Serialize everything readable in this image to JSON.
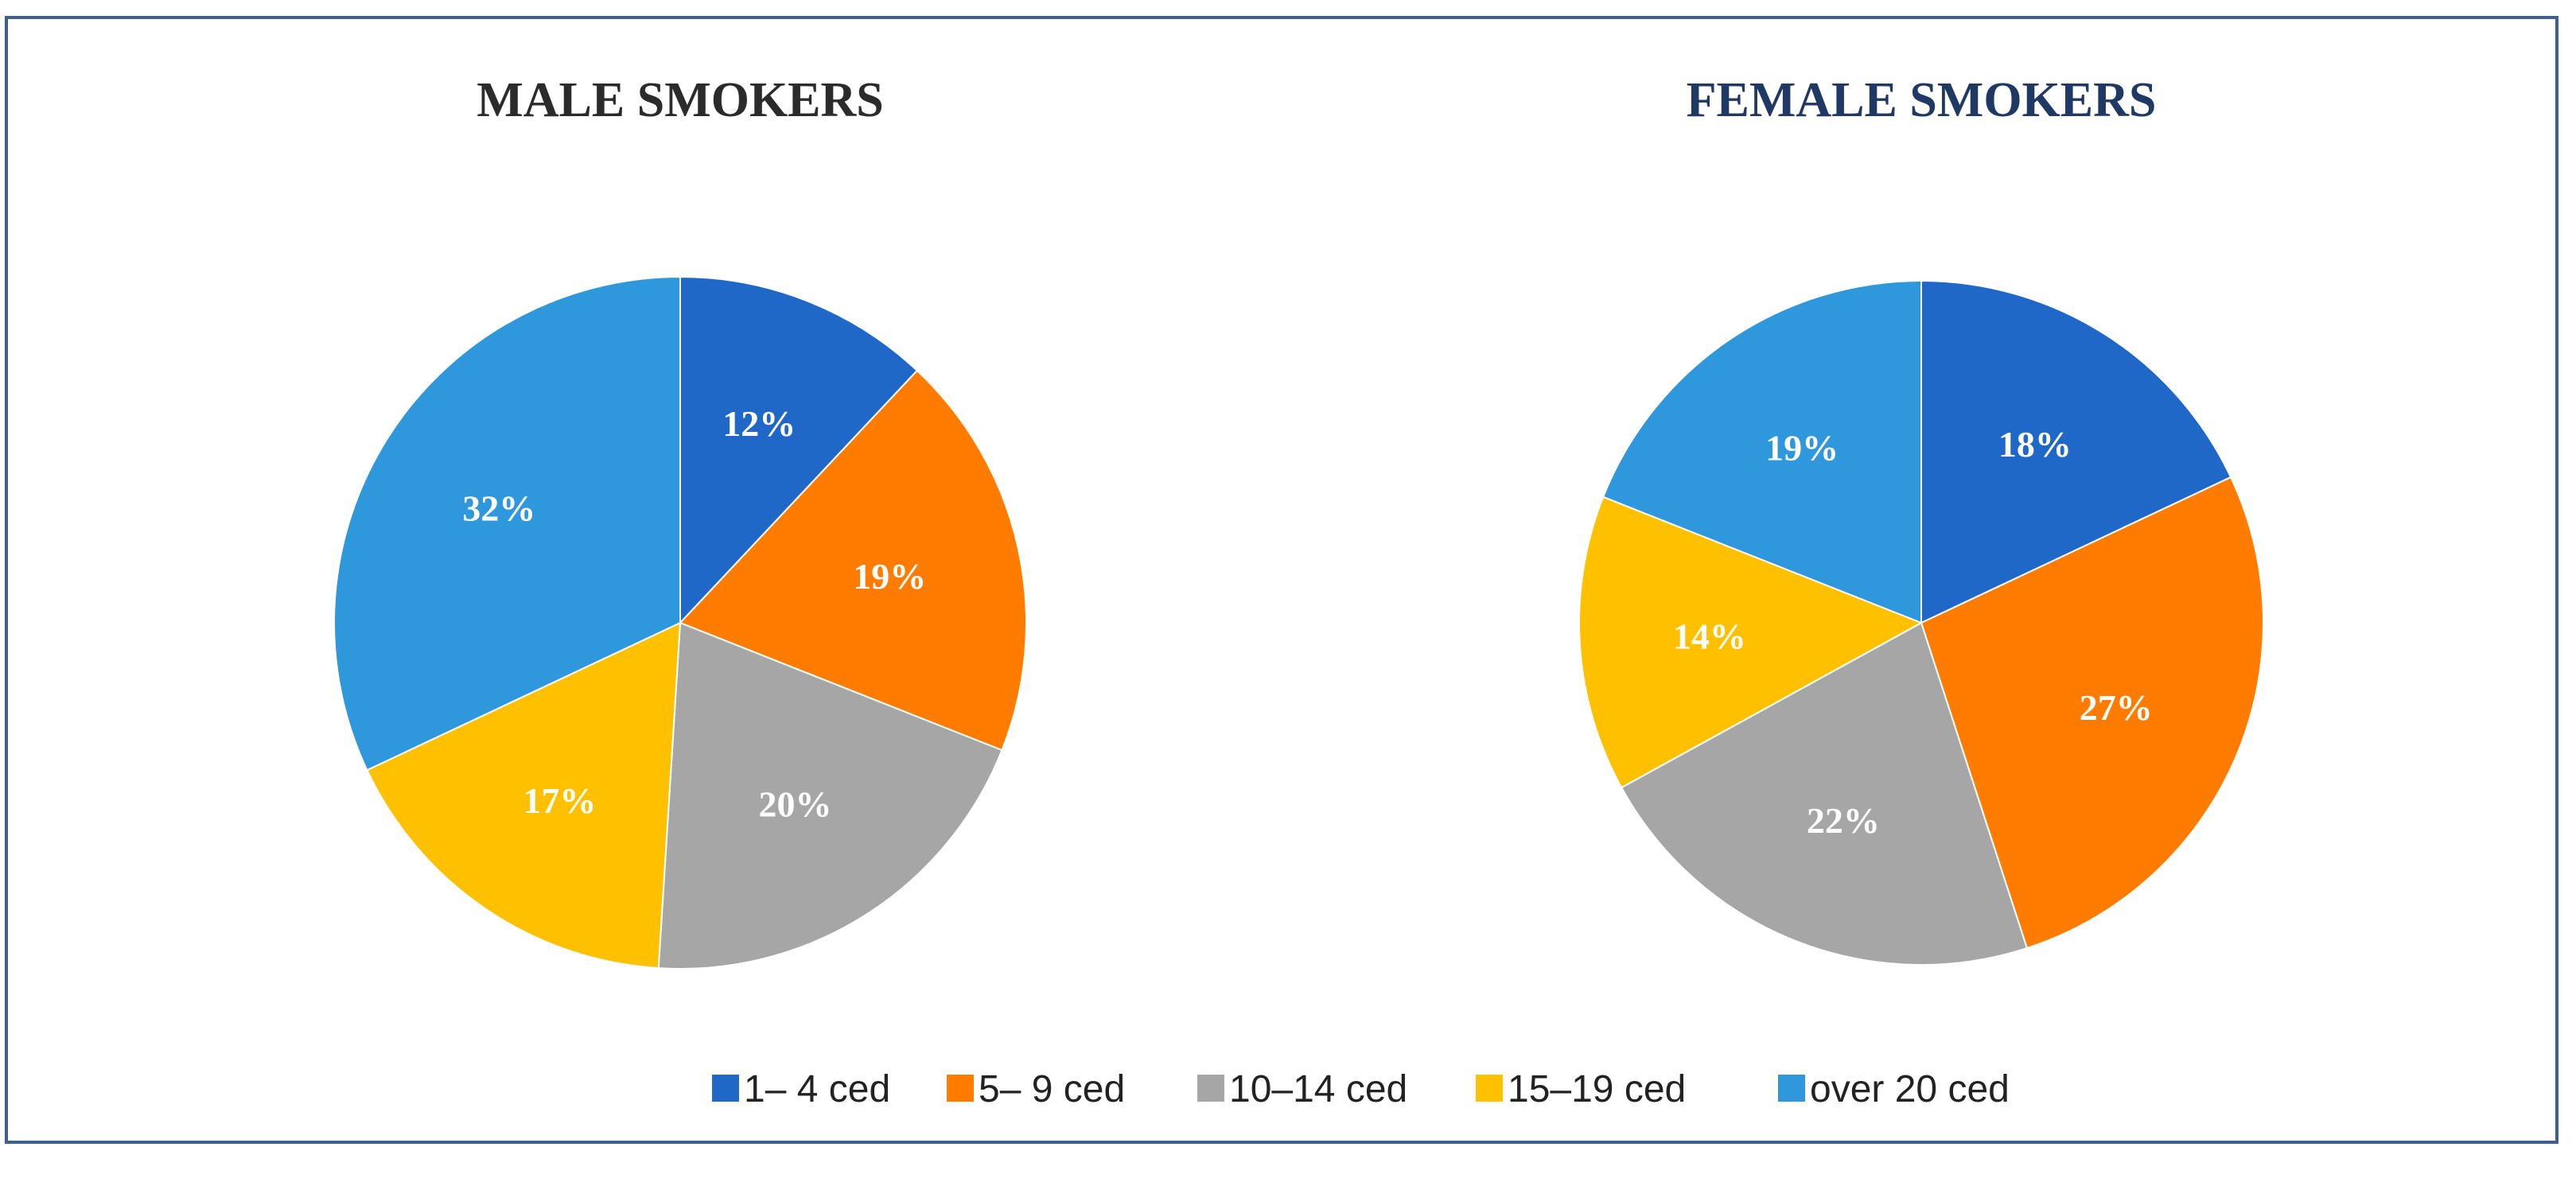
{
  "chart_data": [
    {
      "type": "pie",
      "title": "MALE SMOKERS",
      "title_color": "#2b2b2b",
      "categories": [
        "1– 4 ced",
        "5– 9 ced",
        "10–14 ced",
        "15–19 ced",
        "over 20 ced"
      ],
      "values": [
        12,
        19,
        20,
        17,
        32
      ],
      "labels": [
        "12%",
        "19%",
        "20%",
        "17%",
        "32%"
      ]
    },
    {
      "type": "pie",
      "title": "FEMALE SMOKERS",
      "title_color": "#1f3864",
      "categories": [
        "1– 4 ced",
        "5– 9 ced",
        "10–14 ced",
        "15–19 ced",
        "over 20 ced"
      ],
      "values": [
        18,
        27,
        22,
        14,
        19
      ],
      "labels": [
        "18%",
        "27%",
        "22%",
        "14%",
        "19%"
      ]
    }
  ],
  "legend": {
    "placement": "bottom",
    "items": [
      {
        "label": "1– 4 ced",
        "color": "#2068c8"
      },
      {
        "label": "5– 9 ced",
        "color": "#ff7c00"
      },
      {
        "label": "10–14 ced",
        "color": "#a6a6a6"
      },
      {
        "label": "15–19 ced",
        "color": "#ffc000"
      },
      {
        "label": "over 20 ced",
        "color": "#2f98dc"
      }
    ]
  },
  "colors": [
    "#2068c8",
    "#ff7c00",
    "#a6a6a6",
    "#ffc000",
    "#2f98dc"
  ]
}
